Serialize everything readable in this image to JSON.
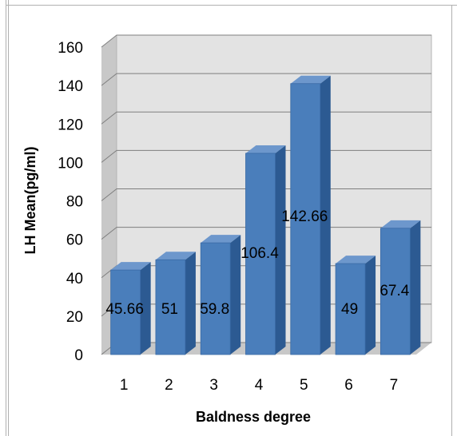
{
  "chart_data": {
    "type": "bar",
    "title": "",
    "xlabel": "Baldness  degree",
    "ylabel": "LH Mean(pg/ml)",
    "categories": [
      "1",
      "2",
      "3",
      "4",
      "5",
      "6",
      "7"
    ],
    "values": [
      45.66,
      51,
      59.8,
      106.4,
      142.66,
      49,
      67.4
    ],
    "data_labels": [
      "45.66",
      "51",
      "59.8",
      "106.4",
      "142.66",
      "49",
      "67.4"
    ],
    "ylim": [
      0,
      160
    ],
    "yticks": [
      "0",
      "20",
      "40",
      "60",
      "80",
      "100",
      "120",
      "140",
      "160"
    ],
    "grid": true,
    "legend": "none",
    "style": "3d-column",
    "colors": {
      "bar_front": "#4a7ebb",
      "bar_side": "#2c5a92",
      "bar_top": "#6d97cc",
      "back_wall": "#e3e3e3",
      "floor": "#c8c8c8",
      "grid": "#7f7f7f"
    }
  }
}
